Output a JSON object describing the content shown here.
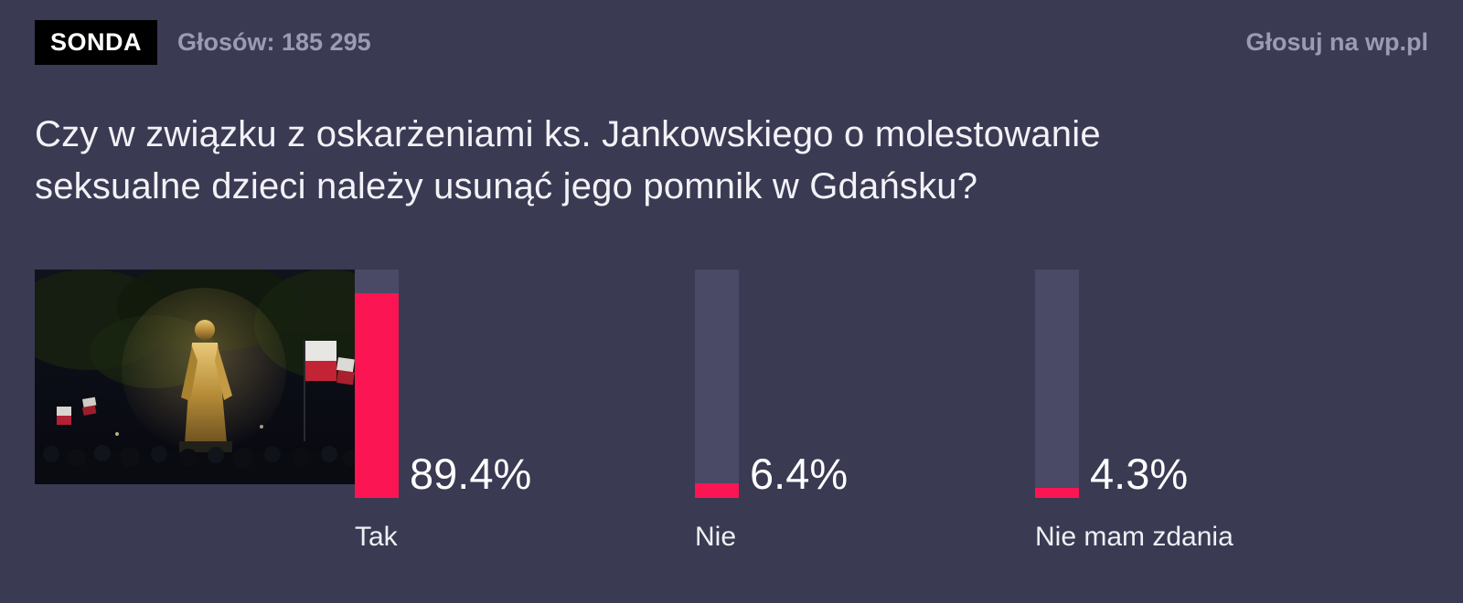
{
  "colors": {
    "background": "#3a3a53",
    "accent": "#fb1552",
    "bar-track": "#4a4a67",
    "muted-text": "#9b9bb1",
    "text": "#ffffff"
  },
  "header": {
    "badge": "SONDA",
    "votes": "Głosów: 185 295",
    "vote_link": "Głosuj na wp.pl"
  },
  "question": "Czy w związku z oskarżeniami ks. Jankowskiego o molestowanie seksualne dzieci należy usunąć jego pomnik w Gdańsku?",
  "chart_data": {
    "type": "bar",
    "title": "",
    "orientation": "vertical",
    "categories": [
      "Tak",
      "Nie",
      "Nie mam zdania"
    ],
    "values": [
      89.4,
      6.4,
      4.3
    ],
    "value_labels": [
      "89.4%",
      "6.4%",
      "4.3%"
    ],
    "ylim": [
      0,
      100
    ],
    "bar_color": "#fb1552",
    "track_color": "#4a4a67",
    "legend": false,
    "grid": false
  }
}
